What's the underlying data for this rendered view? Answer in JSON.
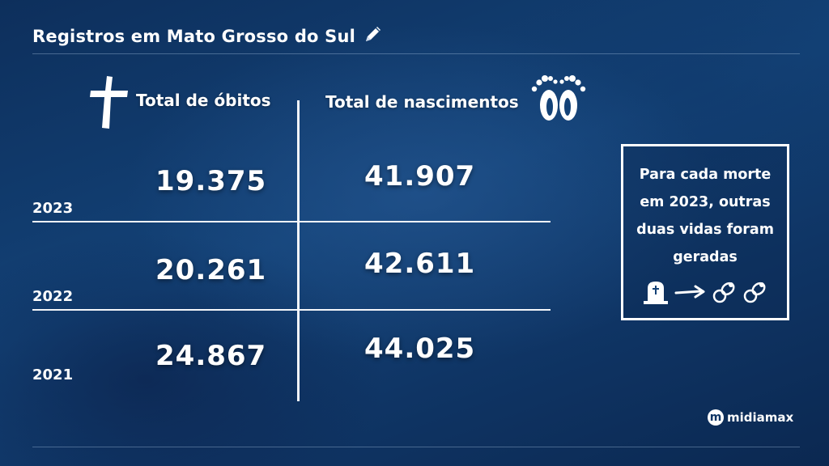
{
  "header": {
    "title": "Registros em Mato Grosso do Sul"
  },
  "columns": {
    "deaths_label": "Total de óbitos",
    "births_label": "Total de nascimentos"
  },
  "rows": [
    {
      "year": "2023",
      "deaths": "19.375",
      "births": "41.907"
    },
    {
      "year": "2022",
      "deaths": "20.261",
      "births": "42.611"
    },
    {
      "year": "2021",
      "deaths": "24.867",
      "births": "44.025"
    }
  ],
  "callout": {
    "text": "Para cada morte em 2023, outras duas vidas foram geradas"
  },
  "logo": {
    "mark": "m",
    "name": "midiamax"
  },
  "icons": [
    "pencil-icon",
    "cross-icon",
    "baby-feet-icon",
    "tombstone-icon",
    "arrow-right-icon",
    "pacifier-icon"
  ]
}
